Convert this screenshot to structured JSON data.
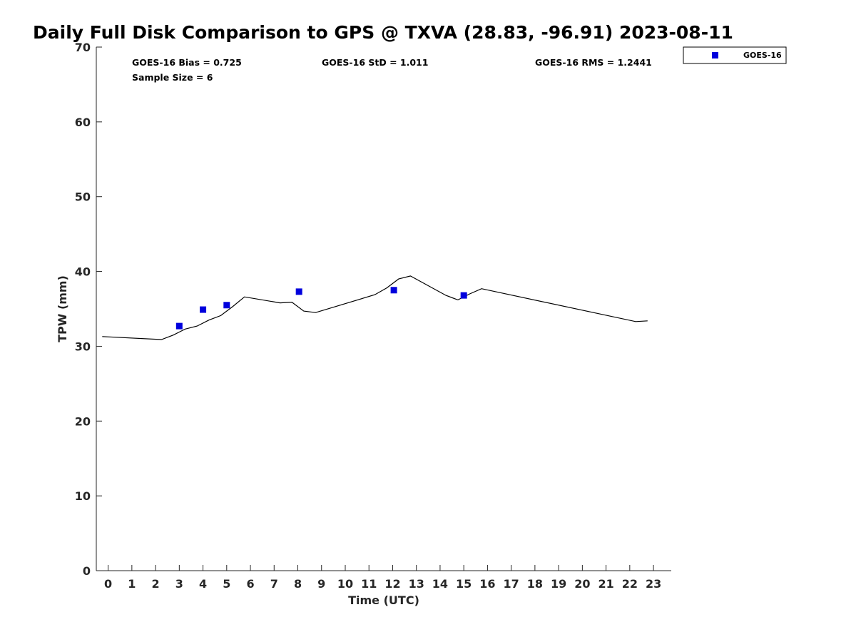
{
  "chart_data": {
    "type": "line",
    "title": "Daily Full Disk Comparison to GPS @ TXVA (28.83, -96.91) 2023-08-11",
    "xlabel": "Time (UTC)",
    "ylabel": "TPW (mm)",
    "xlim": [
      -0.5,
      23.75
    ],
    "ylim": [
      0,
      70
    ],
    "x_ticks": [
      0,
      1,
      2,
      3,
      4,
      5,
      6,
      7,
      8,
      9,
      10,
      11,
      12,
      13,
      14,
      15,
      16,
      17,
      18,
      19,
      20,
      21,
      22,
      23
    ],
    "y_ticks": [
      0,
      10,
      20,
      30,
      40,
      50,
      60,
      70
    ],
    "grid": false,
    "legend_position": "top-right-outside",
    "stats": {
      "bias": "GOES-16 Bias = 0.725",
      "std": "GOES-16 StD = 1.011",
      "rms": "GOES-16 RMS = 1.2441",
      "sample_size": "Sample Size = 6"
    },
    "series": [
      {
        "name": "",
        "kind": "line",
        "color": "#000000",
        "x": [
          -0.25,
          2.25,
          2.75,
          3.25,
          3.75,
          4.25,
          4.75,
          5.25,
          5.75,
          7.25,
          7.75,
          8.25,
          8.75,
          11.25,
          11.75,
          12.25,
          12.75,
          14.25,
          14.75,
          15.25,
          15.75,
          22.25,
          22.75
        ],
        "y": [
          31.3,
          30.9,
          31.5,
          32.3,
          32.7,
          33.5,
          34.1,
          35.3,
          36.6,
          35.8,
          35.9,
          34.7,
          34.5,
          36.9,
          37.8,
          39.0,
          39.4,
          36.8,
          36.2,
          37.0,
          37.7,
          33.3,
          33.4
        ]
      },
      {
        "name": "GOES-16",
        "kind": "scatter",
        "marker": "square",
        "color": "#0000dd",
        "x": [
          3.0,
          4.0,
          5.0,
          8.05,
          12.05,
          15.0
        ],
        "y": [
          32.7,
          34.9,
          35.5,
          37.3,
          37.5,
          36.8
        ]
      }
    ]
  }
}
